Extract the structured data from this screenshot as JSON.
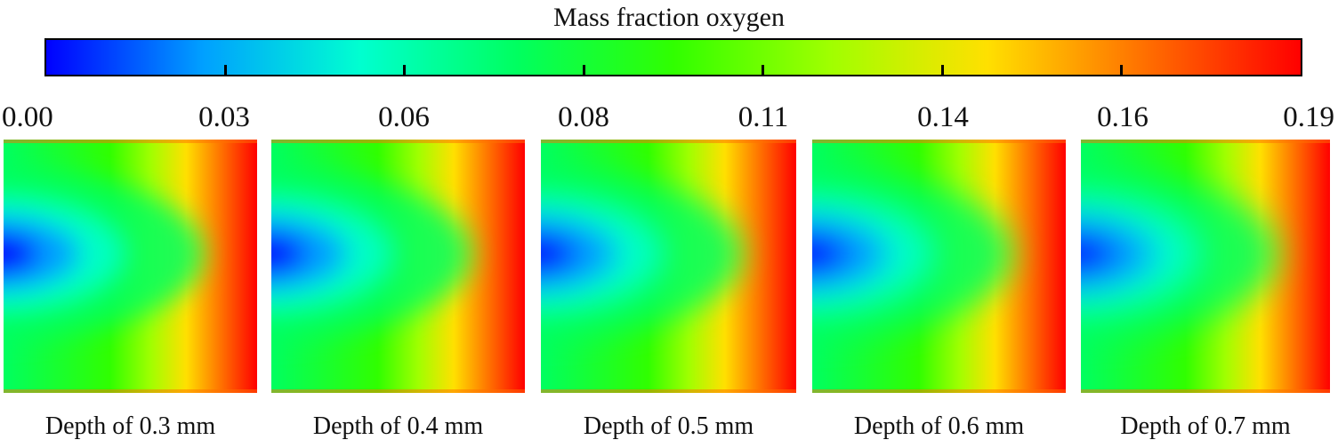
{
  "chart_data": {
    "type": "heatmap",
    "title": "Mass fraction oxygen",
    "colorbar": {
      "min": 0.0,
      "max": 0.19,
      "tick_labels": [
        "0.00",
        "0.03",
        "0.06",
        "0.08",
        "0.11",
        "0.14",
        "0.16",
        "0.19"
      ],
      "colors": [
        "#0000ff",
        "#00a0ff",
        "#00ffd0",
        "#00ff60",
        "#30ff00",
        "#a0ff00",
        "#ffe000",
        "#ff7000",
        "#ff0000"
      ]
    },
    "panels": [
      {
        "label": "Depth of 0.3 mm",
        "depth_mm": 0.3,
        "min_fraction": 0.0,
        "max_fraction": 0.19
      },
      {
        "label": "Depth of 0.4 mm",
        "depth_mm": 0.4,
        "min_fraction": 0.0,
        "max_fraction": 0.19
      },
      {
        "label": "Depth of 0.5 mm",
        "depth_mm": 0.5,
        "min_fraction": 0.0,
        "max_fraction": 0.19
      },
      {
        "label": "Depth of 0.6 mm",
        "depth_mm": 0.6,
        "min_fraction": 0.0,
        "max_fraction": 0.19
      },
      {
        "label": "Depth of 0.7 mm",
        "depth_mm": 0.7,
        "min_fraction": 0.0,
        "max_fraction": 0.19
      }
    ]
  }
}
